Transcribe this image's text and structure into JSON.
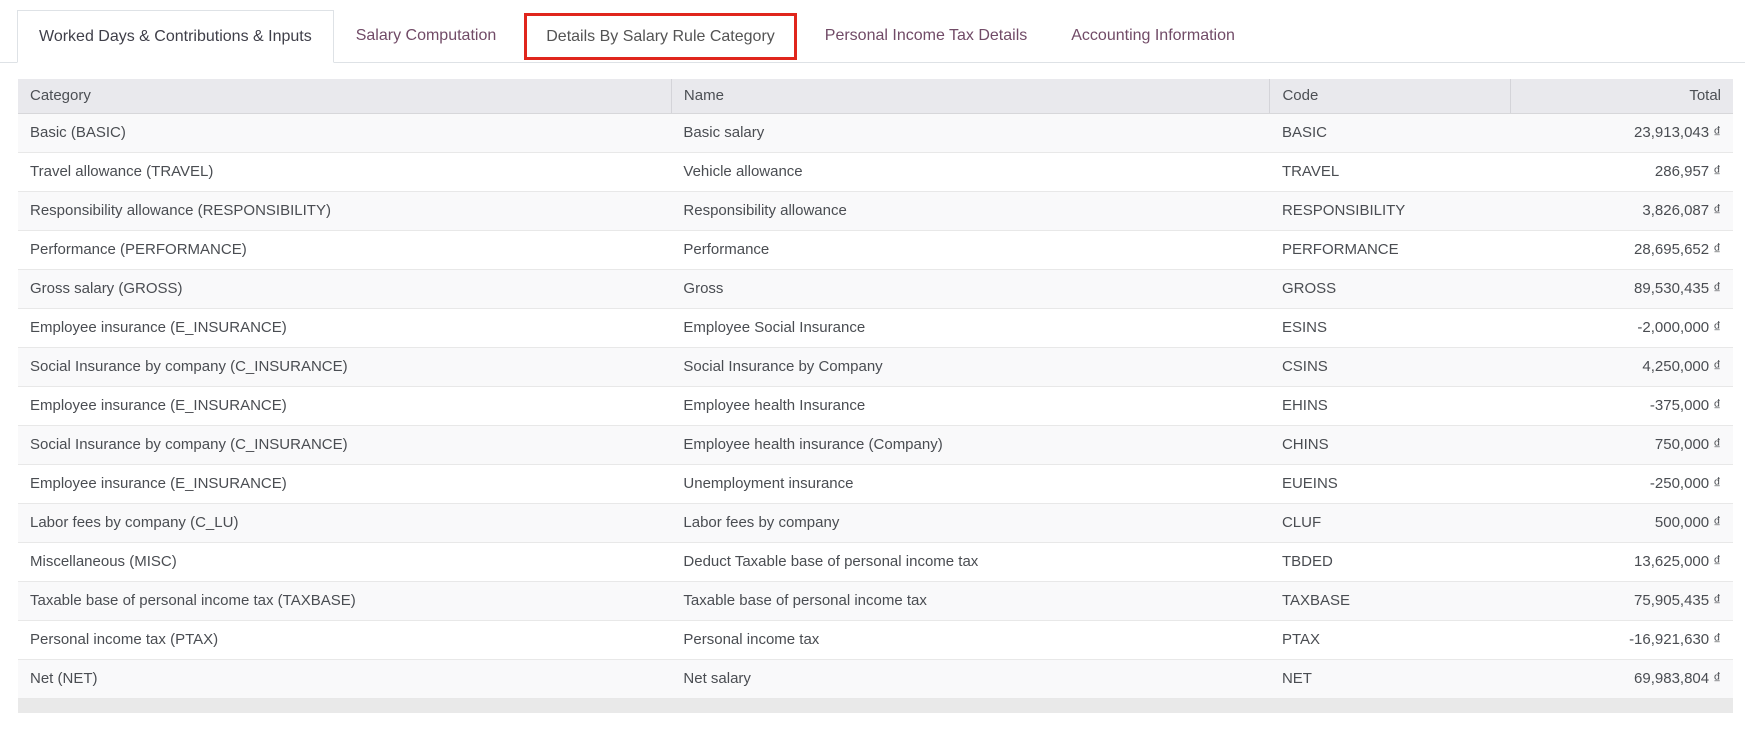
{
  "tabs": [
    {
      "label": "Worked Days & Contributions & Inputs",
      "state": "active"
    },
    {
      "label": "Salary Computation",
      "state": "inactive"
    },
    {
      "label": "Details By Salary Rule Category",
      "state": "highlighted"
    },
    {
      "label": "Personal Income Tax Details",
      "state": "inactive"
    },
    {
      "label": "Accounting Information",
      "state": "inactive"
    }
  ],
  "annotation": {
    "type": "highlight-box",
    "target_tab": "Details By Salary Rule Category",
    "color": "#e0261c"
  },
  "colors": {
    "tab_inactive_text": "#714B67",
    "tab_active_text": "#3f3f49",
    "annotation_red": "#e0261c",
    "table_header_bg": "#e9e9ed",
    "row_stripe_bg": "#f9f9fa",
    "body_text": "#4a4d52"
  },
  "table": {
    "columns": [
      "Category",
      "Name",
      "Code",
      "Total"
    ],
    "rows": [
      {
        "category": "Basic (BASIC)",
        "name": "Basic salary",
        "code": "BASIC",
        "total": "23,913,043 ₫"
      },
      {
        "category": "Travel allowance (TRAVEL)",
        "name": "Vehicle allowance",
        "code": "TRAVEL",
        "total": "286,957 ₫"
      },
      {
        "category": "Responsibility allowance (RESPONSIBILITY)",
        "name": "Responsibility allowance",
        "code": "RESPONSIBILITY",
        "total": "3,826,087 ₫"
      },
      {
        "category": "Performance (PERFORMANCE)",
        "name": "Performance",
        "code": "PERFORMANCE",
        "total": "28,695,652 ₫"
      },
      {
        "category": "Gross salary (GROSS)",
        "name": "Gross",
        "code": "GROSS",
        "total": "89,530,435 ₫"
      },
      {
        "category": "Employee insurance (E_INSURANCE)",
        "name": "Employee Social Insurance",
        "code": "ESINS",
        "total": "-2,000,000 ₫"
      },
      {
        "category": "Social Insurance by company (C_INSURANCE)",
        "name": "Social Insurance by Company",
        "code": "CSINS",
        "total": "4,250,000 ₫"
      },
      {
        "category": "Employee insurance (E_INSURANCE)",
        "name": "Employee health Insurance",
        "code": "EHINS",
        "total": "-375,000 ₫"
      },
      {
        "category": "Social Insurance by company (C_INSURANCE)",
        "name": "Employee health insurance (Company)",
        "code": "CHINS",
        "total": "750,000 ₫"
      },
      {
        "category": "Employee insurance (E_INSURANCE)",
        "name": "Unemployment insurance",
        "code": "EUEINS",
        "total": "-250,000 ₫"
      },
      {
        "category": "Labor fees by company (C_LU)",
        "name": "Labor fees by company",
        "code": "CLUF",
        "total": "500,000 ₫"
      },
      {
        "category": "Miscellaneous (MISC)",
        "name": "Deduct Taxable base of personal income tax",
        "code": "TBDED",
        "total": "13,625,000 ₫"
      },
      {
        "category": "Taxable base of personal income tax (TAXBASE)",
        "name": "Taxable base of personal income tax",
        "code": "TAXBASE",
        "total": "75,905,435 ₫"
      },
      {
        "category": "Personal income tax (PTAX)",
        "name": "Personal income tax",
        "code": "PTAX",
        "total": "-16,921,630 ₫"
      },
      {
        "category": "Net (NET)",
        "name": "Net salary",
        "code": "NET",
        "total": "69,983,804 ₫"
      }
    ]
  }
}
